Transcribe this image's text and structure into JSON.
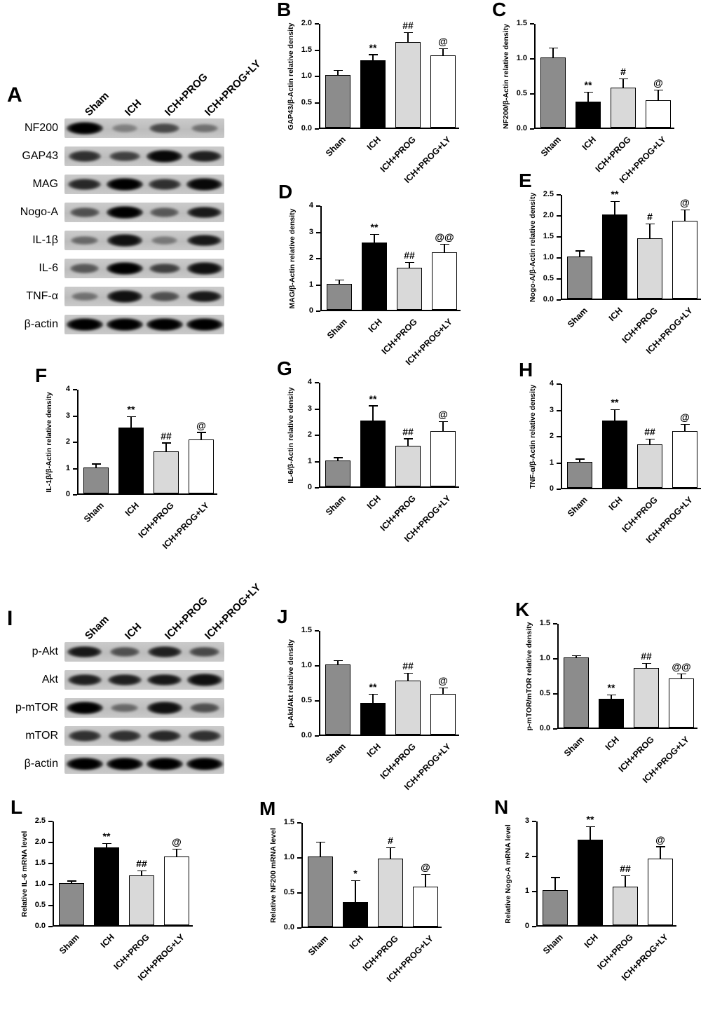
{
  "figure": {
    "background": "#ffffff",
    "categories": [
      "Sham",
      "ICH",
      "ICH+PROG",
      "ICH+PROG+LY"
    ],
    "bar_colors": [
      "#8c8c8c",
      "#000000",
      "#d9d9d9",
      "#ffffff"
    ],
    "error_bar_color": "#000000"
  },
  "blots": [
    {
      "panel": "A",
      "lane_labels": [
        "Sham",
        "ICH",
        "ICH+PROG",
        "ICH+PROG+LY"
      ],
      "rows": [
        {
          "label": "NF200",
          "bands": [
            1.0,
            0.2,
            0.55,
            0.3
          ]
        },
        {
          "label": "GAP43",
          "bands": [
            0.7,
            0.6,
            0.95,
            0.8
          ]
        },
        {
          "label": "MAG",
          "bands": [
            0.75,
            1.0,
            0.7,
            0.95
          ]
        },
        {
          "label": "Nogo-A",
          "bands": [
            0.5,
            1.0,
            0.45,
            0.85
          ]
        },
        {
          "label": "IL-1β",
          "bands": [
            0.35,
            0.9,
            0.25,
            0.85
          ]
        },
        {
          "label": "IL-6",
          "bands": [
            0.45,
            1.0,
            0.6,
            0.9
          ]
        },
        {
          "label": "TNF-α",
          "bands": [
            0.3,
            0.9,
            0.5,
            0.85
          ]
        },
        {
          "label": "β-actin",
          "bands": [
            1.0,
            1.0,
            1.0,
            1.0
          ]
        }
      ]
    },
    {
      "panel": "I",
      "lane_labels": [
        "Sham",
        "ICH",
        "ICH+PROG",
        "ICH+PROG+LY"
      ],
      "rows": [
        {
          "label": "p-Akt",
          "bands": [
            0.85,
            0.5,
            0.8,
            0.55
          ]
        },
        {
          "label": "Akt",
          "bands": [
            0.8,
            0.8,
            0.85,
            0.9
          ]
        },
        {
          "label": "p-mTOR",
          "bands": [
            1.0,
            0.35,
            0.9,
            0.5
          ]
        },
        {
          "label": "mTOR",
          "bands": [
            0.7,
            0.7,
            0.75,
            0.7
          ]
        },
        {
          "label": "β-actin",
          "bands": [
            1.0,
            1.0,
            1.0,
            1.0
          ]
        }
      ]
    }
  ],
  "chart_data": [
    {
      "panel": "B",
      "type": "bar",
      "ylabel": "GAP43/β-Actin relative density",
      "ylim": [
        0,
        2.0
      ],
      "yticks": [
        "0.0",
        "0.5",
        "1.0",
        "1.5",
        "2.0"
      ],
      "categories": [
        "Sham",
        "ICH",
        "ICH+PROG",
        "ICH+PROG+LY"
      ],
      "values": [
        1.0,
        1.28,
        1.63,
        1.37
      ],
      "errors": [
        0.08,
        0.1,
        0.17,
        0.12
      ],
      "annotations": [
        "",
        "**",
        "##",
        "@"
      ]
    },
    {
      "panel": "C",
      "type": "bar",
      "ylabel": "NF200/β-Actin relative density",
      "ylim": [
        0,
        1.5
      ],
      "yticks": [
        "0.0",
        "0.5",
        "1.0",
        "1.5"
      ],
      "categories": [
        "Sham",
        "ICH",
        "ICH+PROG",
        "ICH+PROG+LY"
      ],
      "values": [
        1.0,
        0.37,
        0.57,
        0.39
      ],
      "errors": [
        0.13,
        0.13,
        0.12,
        0.14
      ],
      "annotations": [
        "",
        "**",
        "#",
        "@"
      ]
    },
    {
      "panel": "D",
      "type": "bar",
      "ylabel": "MAG/β-Actin relative density",
      "ylim": [
        0,
        4
      ],
      "yticks": [
        "0",
        "1",
        "2",
        "3",
        "4"
      ],
      "categories": [
        "Sham",
        "ICH",
        "ICH+PROG",
        "ICH+PROG+LY"
      ],
      "values": [
        1.0,
        2.55,
        1.6,
        2.2
      ],
      "errors": [
        0.12,
        0.3,
        0.18,
        0.28
      ],
      "annotations": [
        "",
        "**",
        "##",
        "@@"
      ]
    },
    {
      "panel": "E",
      "type": "bar",
      "ylabel": "Nogo-A/β-Actin relative density",
      "ylim": [
        0,
        2.5
      ],
      "yticks": [
        "0.0",
        "0.5",
        "1.0",
        "1.5",
        "2.0",
        "2.5"
      ],
      "categories": [
        "Sham",
        "ICH",
        "ICH+PROG",
        "ICH+PROG+LY"
      ],
      "values": [
        1.0,
        2.0,
        1.43,
        1.85
      ],
      "errors": [
        0.12,
        0.3,
        0.33,
        0.25
      ],
      "annotations": [
        "",
        "**",
        "#",
        "@"
      ]
    },
    {
      "panel": "F",
      "type": "bar",
      "ylabel": "IL-1β/β-Actin relative density",
      "ylim": [
        0,
        4
      ],
      "yticks": [
        "0",
        "1",
        "2",
        "3",
        "4"
      ],
      "categories": [
        "Sham",
        "ICH",
        "ICH+PROG",
        "ICH+PROG+LY"
      ],
      "values": [
        1.0,
        2.5,
        1.6,
        2.05
      ],
      "errors": [
        0.1,
        0.4,
        0.3,
        0.25
      ],
      "annotations": [
        "",
        "**",
        "##",
        "@"
      ]
    },
    {
      "panel": "G",
      "type": "bar",
      "ylabel": "IL-6/β-Actin relative density",
      "ylim": [
        0,
        4
      ],
      "yticks": [
        "0",
        "1",
        "2",
        "3",
        "4"
      ],
      "categories": [
        "Sham",
        "ICH",
        "ICH+PROG",
        "ICH+PROG+LY"
      ],
      "values": [
        1.0,
        2.5,
        1.55,
        2.1
      ],
      "errors": [
        0.08,
        0.55,
        0.25,
        0.35
      ],
      "annotations": [
        "",
        "**",
        "##",
        "@"
      ]
    },
    {
      "panel": "H",
      "type": "bar",
      "ylabel": "TNF-α/β-Actin relative density",
      "ylim": [
        0,
        4
      ],
      "yticks": [
        "0",
        "1",
        "2",
        "3",
        "4"
      ],
      "categories": [
        "Sham",
        "ICH",
        "ICH+PROG",
        "ICH+PROG+LY"
      ],
      "values": [
        1.0,
        2.55,
        1.65,
        2.15
      ],
      "errors": [
        0.08,
        0.4,
        0.18,
        0.25
      ],
      "annotations": [
        "",
        "**",
        "##",
        "@"
      ]
    },
    {
      "panel": "J",
      "type": "bar",
      "ylabel": "p-Akt/Akt relative density",
      "ylim": [
        0,
        1.5
      ],
      "yticks": [
        "0.0",
        "0.5",
        "1.0",
        "1.5"
      ],
      "categories": [
        "Sham",
        "ICH",
        "ICH+PROG",
        "ICH+PROG+LY"
      ],
      "values": [
        1.0,
        0.45,
        0.77,
        0.58
      ],
      "errors": [
        0.05,
        0.12,
        0.1,
        0.08
      ],
      "annotations": [
        "",
        "**",
        "##",
        "@"
      ]
    },
    {
      "panel": "K",
      "type": "bar",
      "ylabel": "p-mTOR/mTOR relative density",
      "ylim": [
        0,
        1.5
      ],
      "yticks": [
        "0.0",
        "0.5",
        "1.0",
        "1.5"
      ],
      "categories": [
        "Sham",
        "ICH",
        "ICH+PROG",
        "ICH+PROG+LY"
      ],
      "values": [
        1.0,
        0.41,
        0.85,
        0.7
      ],
      "errors": [
        0.02,
        0.05,
        0.06,
        0.06
      ],
      "annotations": [
        "",
        "**",
        "##",
        "@@"
      ]
    },
    {
      "panel": "L",
      "type": "bar",
      "ylabel": "Relative IL-6 mRNA level",
      "ylim": [
        0,
        2.5
      ],
      "yticks": [
        "0.0",
        "0.5",
        "1.0",
        "1.5",
        "2.0",
        "2.5"
      ],
      "categories": [
        "Sham",
        "ICH",
        "ICH+PROG",
        "ICH+PROG+LY"
      ],
      "values": [
        1.0,
        1.85,
        1.18,
        1.63
      ],
      "errors": [
        0.04,
        0.08,
        0.1,
        0.17
      ],
      "annotations": [
        "",
        "**",
        "##",
        "@"
      ]
    },
    {
      "panel": "M",
      "type": "bar",
      "ylabel": "Relative NF200 mRNA level",
      "ylim": [
        0,
        1.5
      ],
      "yticks": [
        "0.0",
        "0.5",
        "1.0",
        "1.5"
      ],
      "categories": [
        "Sham",
        "ICH",
        "ICH+PROG",
        "ICH+PROG+LY"
      ],
      "values": [
        1.0,
        0.35,
        0.97,
        0.57
      ],
      "errors": [
        0.2,
        0.3,
        0.15,
        0.17
      ],
      "annotations": [
        "",
        "*",
        "#",
        "@"
      ]
    },
    {
      "panel": "N",
      "type": "bar",
      "ylabel": "Relative Nogo-A mRNA level",
      "ylim": [
        0,
        3
      ],
      "yticks": [
        "0",
        "1",
        "2",
        "3"
      ],
      "categories": [
        "Sham",
        "ICH",
        "ICH+PROG",
        "ICH+PROG+LY"
      ],
      "values": [
        1.0,
        2.45,
        1.1,
        1.9
      ],
      "errors": [
        0.35,
        0.35,
        0.3,
        0.33
      ],
      "annotations": [
        "",
        "**",
        "##",
        "@"
      ]
    }
  ]
}
